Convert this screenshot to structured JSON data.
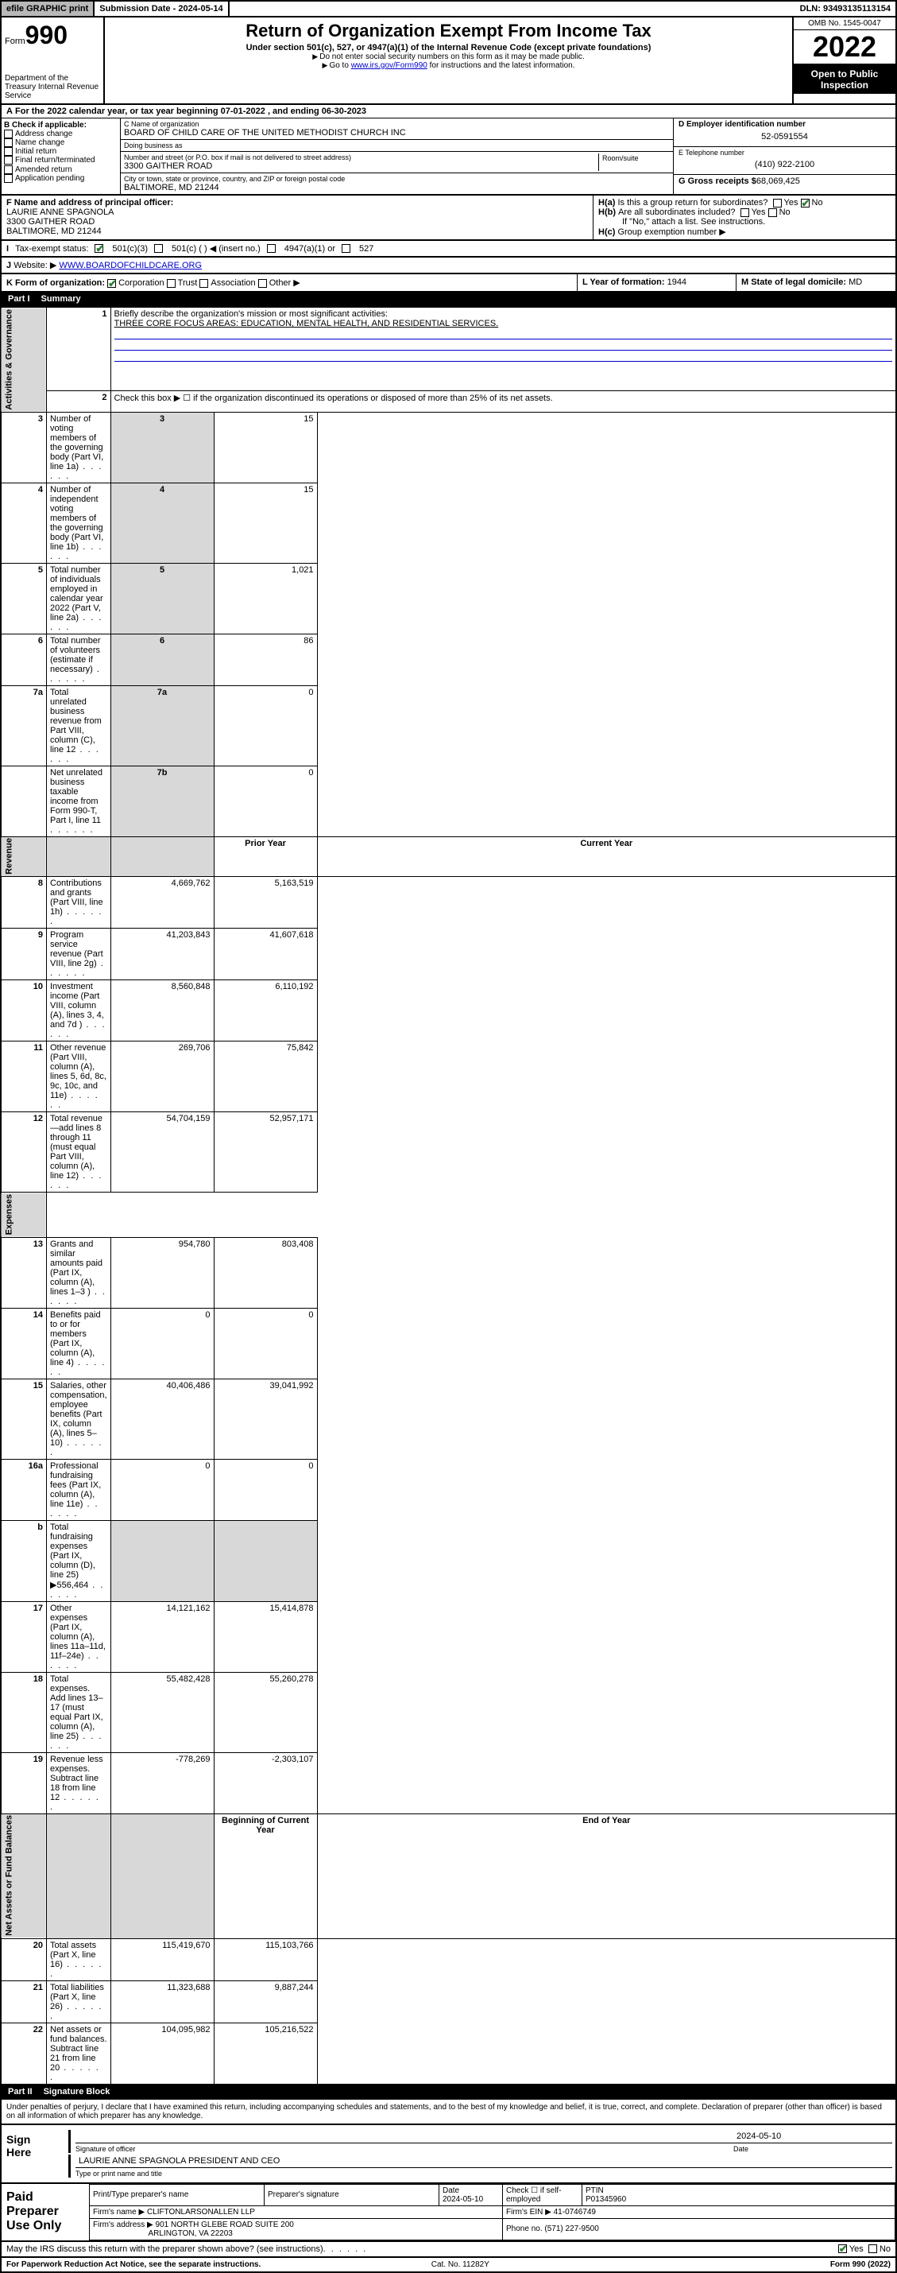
{
  "topbar": {
    "efile": "efile GRAPHIC print",
    "subdate_label": "Submission Date - ",
    "subdate": "2024-05-14",
    "dln_label": "DLN: ",
    "dln": "93493135113154"
  },
  "header": {
    "form_word": "Form",
    "form_num": "990",
    "dept": "Department of the Treasury\nInternal Revenue Service",
    "title": "Return of Organization Exempt From Income Tax",
    "subtitle": "Under section 501(c), 527, or 4947(a)(1) of the Internal Revenue Code (except private foundations)",
    "note1": "Do not enter social security numbers on this form as it may be made public.",
    "note2_pre": "Go to ",
    "note2_link": "www.irs.gov/Form990",
    "note2_post": " for instructions and the latest information.",
    "omb": "OMB No. 1545-0047",
    "year": "2022",
    "open": "Open to Public Inspection"
  },
  "lineA": "For the 2022 calendar year, or tax year beginning 07-01-2022    , and ending 06-30-2023",
  "B": {
    "label": "B Check if applicable:",
    "items": [
      "Address change",
      "Name change",
      "Initial return",
      "Final return/terminated",
      "Amended return",
      "Application pending"
    ]
  },
  "C": {
    "name_label": "C Name of organization",
    "name": "BOARD OF CHILD CARE OF THE UNITED METHODIST CHURCH INC",
    "dba_label": "Doing business as",
    "street_label": "Number and street (or P.O. box if mail is not delivered to street address)",
    "room_label": "Room/suite",
    "street": "3300 GAITHER ROAD",
    "city_label": "City or town, state or province, country, and ZIP or foreign postal code",
    "city": "BALTIMORE, MD  21244"
  },
  "D": {
    "label": "D Employer identification number",
    "ein": "52-0591554"
  },
  "E": {
    "label": "E Telephone number",
    "phone": "(410) 922-2100"
  },
  "G": {
    "label": "G Gross receipts $",
    "val": "68,069,425"
  },
  "F": {
    "label": "F  Name and address of principal officer:",
    "name": "LAURIE ANNE SPAGNOLA",
    "addr1": "3300 GAITHER ROAD",
    "addr2": "BALTIMORE, MD  21244"
  },
  "H": {
    "a": "Is this a group return for subordinates?",
    "b": "Are all subordinates included?",
    "b_note": "If \"No,\" attach a list. See instructions.",
    "c": "Group exemption number ▶"
  },
  "I": {
    "label": "Tax-exempt status:",
    "opts": [
      "501(c)(3)",
      "501(c) (  ) ◀ (insert no.)",
      "4947(a)(1) or",
      "527"
    ]
  },
  "J": {
    "label": "Website: ▶",
    "url": "WWW.BOARDOFCHILDCARE.ORG"
  },
  "K": {
    "label": "K Form of organization:",
    "opts": [
      "Corporation",
      "Trust",
      "Association",
      "Other ▶"
    ]
  },
  "L": {
    "label": "L Year of formation:",
    "val": "1944"
  },
  "M": {
    "label": "M State of legal domicile:",
    "val": "MD"
  },
  "partI": {
    "label": "Part I",
    "title": "Summary"
  },
  "summary": {
    "line1_label": "Briefly describe the organization's mission or most significant activities:",
    "line1_text": "THREE CORE FOCUS AREAS: EDUCATION, MENTAL HEALTH, AND RESIDENTIAL SERVICES.",
    "line2": "Check this box ▶ ☐  if the organization discontinued its operations or disposed of more than 25% of its net assets.",
    "rows_gov": [
      {
        "n": "3",
        "d": "Number of voting members of the governing body (Part VI, line 1a)",
        "box": "3",
        "v": "15"
      },
      {
        "n": "4",
        "d": "Number of independent voting members of the governing body (Part VI, line 1b)",
        "box": "4",
        "v": "15"
      },
      {
        "n": "5",
        "d": "Total number of individuals employed in calendar year 2022 (Part V, line 2a)",
        "box": "5",
        "v": "1,021"
      },
      {
        "n": "6",
        "d": "Total number of volunteers (estimate if necessary)",
        "box": "6",
        "v": "86"
      },
      {
        "n": "7a",
        "d": "Total unrelated business revenue from Part VIII, column (C), line 12",
        "box": "7a",
        "v": "0"
      },
      {
        "n": "",
        "d": "Net unrelated business taxable income from Form 990-T, Part I, line 11",
        "box": "7b",
        "v": "0"
      }
    ],
    "col_prior": "Prior Year",
    "col_curr": "Current Year",
    "rows_rev": [
      {
        "n": "8",
        "d": "Contributions and grants (Part VIII, line 1h)",
        "p": "4,669,762",
        "c": "5,163,519"
      },
      {
        "n": "9",
        "d": "Program service revenue (Part VIII, line 2g)",
        "p": "41,203,843",
        "c": "41,607,618"
      },
      {
        "n": "10",
        "d": "Investment income (Part VIII, column (A), lines 3, 4, and 7d )",
        "p": "8,560,848",
        "c": "6,110,192"
      },
      {
        "n": "11",
        "d": "Other revenue (Part VIII, column (A), lines 5, 6d, 8c, 9c, 10c, and 11e)",
        "p": "269,706",
        "c": "75,842"
      },
      {
        "n": "12",
        "d": "Total revenue—add lines 8 through 11 (must equal Part VIII, column (A), line 12)",
        "p": "54,704,159",
        "c": "52,957,171"
      }
    ],
    "rows_exp": [
      {
        "n": "13",
        "d": "Grants and similar amounts paid (Part IX, column (A), lines 1–3 )",
        "p": "954,780",
        "c": "803,408"
      },
      {
        "n": "14",
        "d": "Benefits paid to or for members (Part IX, column (A), line 4)",
        "p": "0",
        "c": "0"
      },
      {
        "n": "15",
        "d": "Salaries, other compensation, employee benefits (Part IX, column (A), lines 5–10)",
        "p": "40,406,486",
        "c": "39,041,992"
      },
      {
        "n": "16a",
        "d": "Professional fundraising fees (Part IX, column (A), line 11e)",
        "p": "0",
        "c": "0"
      },
      {
        "n": "b",
        "d": "Total fundraising expenses (Part IX, column (D), line 25) ▶556,464",
        "p": "",
        "c": "",
        "grey": true
      },
      {
        "n": "17",
        "d": "Other expenses (Part IX, column (A), lines 11a–11d, 11f–24e)",
        "p": "14,121,162",
        "c": "15,414,878"
      },
      {
        "n": "18",
        "d": "Total expenses. Add lines 13–17 (must equal Part IX, column (A), line 25)",
        "p": "55,482,428",
        "c": "55,260,278"
      },
      {
        "n": "19",
        "d": "Revenue less expenses. Subtract line 18 from line 12",
        "p": "-778,269",
        "c": "-2,303,107"
      }
    ],
    "col_beg": "Beginning of Current Year",
    "col_end": "End of Year",
    "rows_net": [
      {
        "n": "20",
        "d": "Total assets (Part X, line 16)",
        "p": "115,419,670",
        "c": "115,103,766"
      },
      {
        "n": "21",
        "d": "Total liabilities (Part X, line 26)",
        "p": "11,323,688",
        "c": "9,887,244"
      },
      {
        "n": "22",
        "d": "Net assets or fund balances. Subtract line 21 from line 20",
        "p": "104,095,982",
        "c": "105,216,522"
      }
    ],
    "vtab_gov": "Activities & Governance",
    "vtab_rev": "Revenue",
    "vtab_exp": "Expenses",
    "vtab_net": "Net Assets or Fund Balances"
  },
  "partII": {
    "label": "Part II",
    "title": "Signature Block"
  },
  "sig": {
    "perjury": "Under penalties of perjury, I declare that I have examined this return, including accompanying schedules and statements, and to the best of my knowledge and belief, it is true, correct, and complete. Declaration of preparer (other than officer) is based on all information of which preparer has any knowledge.",
    "signhere": "Sign Here",
    "sigofficer": "Signature of officer",
    "date": "2024-05-10",
    "date_label": "Date",
    "name": "LAURIE ANNE SPAGNOLA  PRESIDENT AND CEO",
    "name_label": "Type or print name and title"
  },
  "paid": {
    "title": "Paid Preparer Use Only",
    "h": [
      "Print/Type preparer's name",
      "Preparer's signature",
      "Date",
      "Check ☐ if self-employed",
      "PTIN"
    ],
    "date": "2024-05-10",
    "ptin": "P01345960",
    "firm_label": "Firm's name    ▶",
    "firm": "CLIFTONLARSONALLEN LLP",
    "ein_label": "Firm's EIN ▶",
    "ein": "41-0746749",
    "addr_label": "Firm's address ▶",
    "addr1": "901 NORTH GLEBE ROAD SUITE 200",
    "addr2": "ARLINGTON, VA  22203",
    "phone_label": "Phone no.",
    "phone": "(571) 227-9500"
  },
  "discuss": {
    "q": "May the IRS discuss this return with the preparer shown above? (see instructions)",
    "yes": "Yes",
    "no": "No"
  },
  "footer": {
    "left": "For Paperwork Reduction Act Notice, see the separate instructions.",
    "mid": "Cat. No. 11282Y",
    "right": "Form 990 (2022)"
  },
  "style": {
    "link_color": "#0000cc",
    "check_color": "#2e7d32",
    "grey_bg": "#d8d8d8",
    "topbar_grey": "#b8b8b8"
  }
}
